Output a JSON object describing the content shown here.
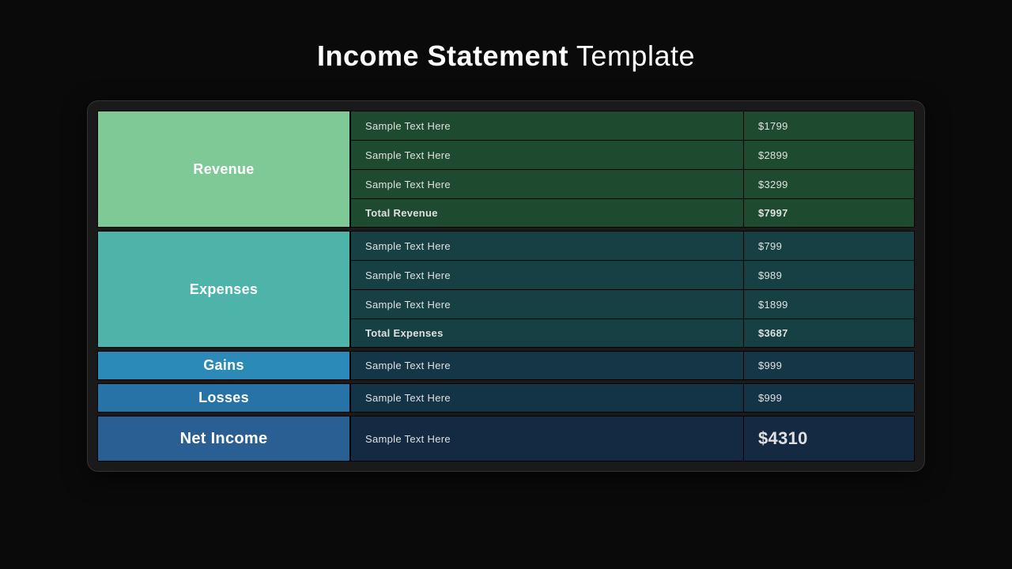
{
  "title_bold": "Income Statement",
  "title_regular": "Template",
  "colors": {
    "background": "#0a0a0a",
    "panel": "#1a1a1a"
  },
  "sections": [
    {
      "name": "Revenue",
      "cat_bg": "#7fc997",
      "row_bg": "#1e4a30",
      "rows": [
        {
          "label": "Sample Text Here",
          "value": "$1799",
          "bold": false
        },
        {
          "label": "Sample Text Here",
          "value": "$2899",
          "bold": false
        },
        {
          "label": "Sample Text Here",
          "value": "$3299",
          "bold": false
        },
        {
          "label": "Total Revenue",
          "value": "$7997",
          "bold": true
        }
      ]
    },
    {
      "name": "Expenses",
      "cat_bg": "#4eb3a8",
      "row_bg": "#164043",
      "rows": [
        {
          "label": "Sample Text Here",
          "value": "$799",
          "bold": false
        },
        {
          "label": "Sample Text Here",
          "value": "$989",
          "bold": false
        },
        {
          "label": "Sample Text Here",
          "value": "$1899",
          "bold": false
        },
        {
          "label": "Total Expenses",
          "value": "$3687",
          "bold": true
        }
      ]
    },
    {
      "name": "Gains",
      "cat_bg": "#2b8ab8",
      "row_bg": "#143646",
      "rows": [
        {
          "label": "Sample Text Here",
          "value": "$999",
          "bold": false
        }
      ]
    },
    {
      "name": "Losses",
      "cat_bg": "#2773a8",
      "row_bg": "#133346",
      "rows": [
        {
          "label": "Sample Text Here",
          "value": "$999",
          "bold": false
        }
      ]
    },
    {
      "name": "Net Income",
      "cat_bg": "#2a5f94",
      "row_bg": "#132a42",
      "net": true,
      "rows": [
        {
          "label": "Sample Text Here",
          "value": "$4310",
          "bold": false
        }
      ]
    }
  ]
}
